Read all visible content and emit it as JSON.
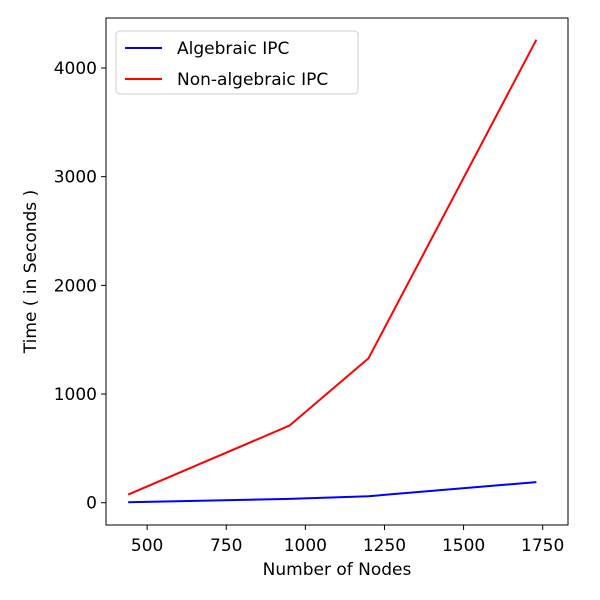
{
  "chart_data": {
    "type": "line",
    "xlabel": "Number of Nodes",
    "ylabel": "Time ( in Seconds )",
    "xlim": [
      370,
      1830
    ],
    "ylim": [
      -205,
      4460
    ],
    "xticks": [
      500,
      750,
      1000,
      1250,
      1500,
      1750
    ],
    "yticks": [
      0,
      1000,
      2000,
      3000,
      4000
    ],
    "grid": false,
    "legend_position": "top-left",
    "series": [
      {
        "name": "Algebraic IPC",
        "color": "#0000ff",
        "x": [
          440,
          950,
          1200,
          1730
        ],
        "y": [
          5,
          35,
          60,
          190
        ]
      },
      {
        "name": "Non-algebraic IPC",
        "color": "#ff0000",
        "x": [
          440,
          950,
          1200,
          1730
        ],
        "y": [
          75,
          710,
          1330,
          4260
        ]
      }
    ]
  }
}
